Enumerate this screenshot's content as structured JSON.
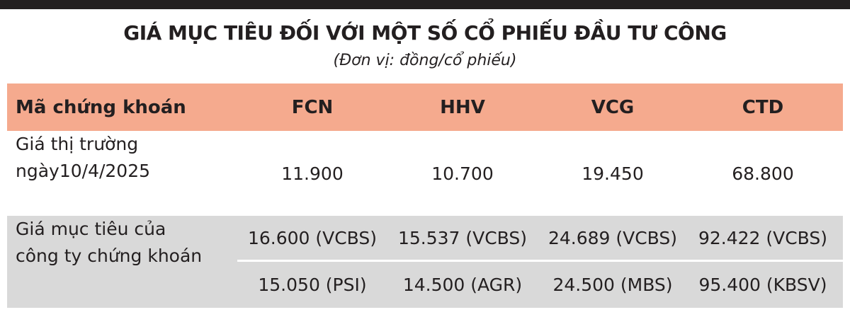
{
  "title": "GIÁ MỤC TIÊU ĐỐI VỚI MỘT SỐ CỔ PHIẾU ĐẦU TƯ CÔNG",
  "subtitle": "(Đơn vị: đồng/cổ phiếu)",
  "table": {
    "header": [
      "Mã chứng khoán",
      "FCN",
      "HHV",
      "VCG",
      "CTD"
    ],
    "market_row": {
      "label": [
        "Giá thị trường",
        "ngày10/4/2025"
      ],
      "values": [
        "11.900",
        "10.700",
        "19.450",
        "68.800"
      ]
    },
    "target_row": {
      "label": [
        "Giá mục tiêu của",
        "công ty chứng khoán"
      ],
      "estimates": [
        [
          "16.600 (VCBS)",
          "15.537 (VCBS)",
          "24.689 (VCBS)",
          "92.422 (VCBS)"
        ],
        [
          "15.050 (PSI)",
          "14.500 (AGR)",
          "24.500 (MBS)",
          "95.400 (KBSV)"
        ]
      ]
    }
  }
}
